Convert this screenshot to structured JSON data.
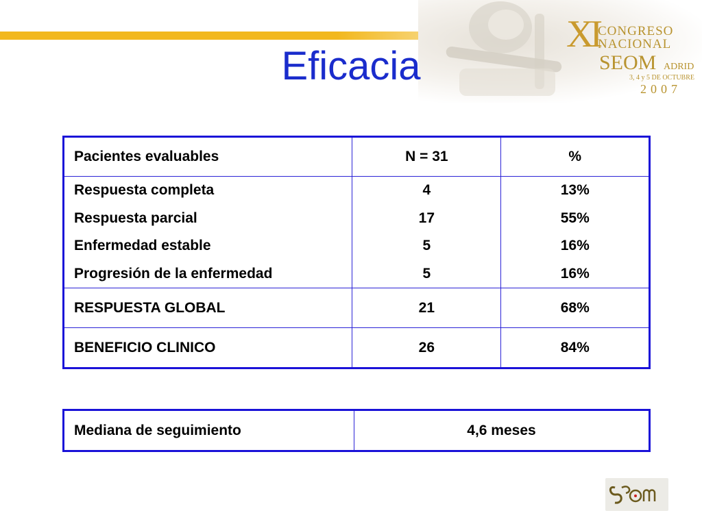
{
  "header": {
    "title": "Eficacia",
    "congress": {
      "roman": "XI",
      "line1": "CONGRESO",
      "line2": "NACIONAL",
      "org": "SEOM",
      "city": "ADRID",
      "dates": "3, 4 y 5 DE OCTUBRE",
      "year": "2007"
    }
  },
  "results_table": {
    "header": [
      "Pacientes evaluables",
      "N = 31",
      "%"
    ],
    "groups": [
      {
        "label": "Respuesta completa",
        "n": "4",
        "pct": "13%"
      },
      {
        "label": "Respuesta parcial",
        "n": "17",
        "pct": "55%"
      },
      {
        "label": "Enfermedad estable",
        "n": "5",
        "pct": "16%"
      },
      {
        "label": "Progresión de la enfermedad",
        "n": "5",
        "pct": "16%"
      }
    ],
    "summary": [
      {
        "label": "RESPUESTA GLOBAL",
        "n": "21",
        "pct": "68%"
      },
      {
        "label": "BENEFICIO CLINICO",
        "n": "26",
        "pct": "84%"
      }
    ]
  },
  "followup_table": {
    "label": "Mediana de seguimiento",
    "value": "4,6 meses"
  },
  "colors": {
    "title": "#1a2ccc",
    "table_border": "#1a12d8",
    "accent_rule": "#f2b81e",
    "congress_gold": "#b8932f"
  }
}
